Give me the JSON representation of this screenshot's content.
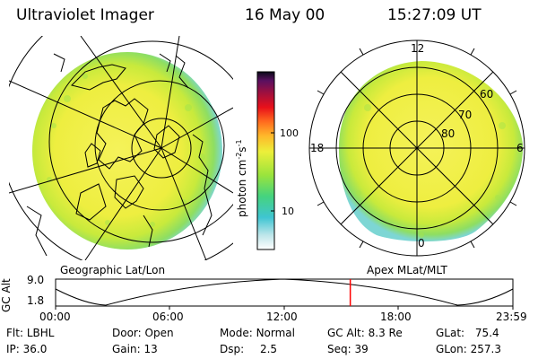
{
  "header": {
    "title": "Ultraviolet Imager",
    "date": "16 May 00",
    "time": "15:27:09 UT"
  },
  "geo_panel": {
    "label": "Geographic Lat/Lon"
  },
  "mag_panel": {
    "label": "Apex MLat/MLT",
    "mlt_labels": {
      "top": "12",
      "left": "18",
      "right": "6",
      "bottom": "0"
    },
    "lat_labels": [
      "60",
      "70",
      "80"
    ]
  },
  "colorbar": {
    "unit_label": "photon cm",
    "unit_sup1": "-2",
    "unit_mid": "s",
    "unit_sup2": "-1",
    "ticks": [
      "100",
      "10"
    ]
  },
  "timeline": {
    "ylabel": "GC Alt",
    "ymax": "9.0",
    "ymin": "1.8",
    "ticks": [
      "00:00",
      "06:00",
      "12:00",
      "18:00",
      "23:59"
    ],
    "current_time_fraction": 0.6444
  },
  "info": {
    "flt_label": "Flt:",
    "flt_value": "LBHL",
    "ip_label": "IP:",
    "ip_value": "36.0",
    "door_label": "Door:",
    "door_value": "Open",
    "gain_label": "Gain:",
    "gain_value": "13",
    "mode_label": "Mode:",
    "mode_value": "Normal",
    "dsp_label": "Dsp:",
    "dsp_value": "2.5",
    "gcalt_label": "GC Alt:",
    "gcalt_value": "8.3 Re",
    "seq_label": "Seq:",
    "seq_value": "39",
    "glat_label": "GLat:",
    "glat_value": "75.4",
    "glon_label": "GLon:",
    "glon_value": "257.3"
  },
  "colors": {
    "marker": "#ff0000",
    "image_yellow": "#f2f23a",
    "image_green": "#9ee04a",
    "image_cyan": "#6fd0d8"
  }
}
